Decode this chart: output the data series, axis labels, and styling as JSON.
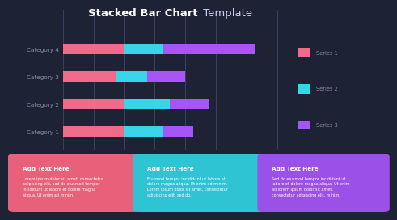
{
  "title_bold": "Stacked Bar Chart",
  "title_regular": " Template",
  "background_color": "#1e2235",
  "categories": [
    "Category 1",
    "Category 2",
    "Category 3",
    "Category 4"
  ],
  "series1_values": [
    4.0,
    4.0,
    3.5,
    4.0
  ],
  "series2_values": [
    2.5,
    3.0,
    2.0,
    2.5
  ],
  "series3_values": [
    2.0,
    2.5,
    2.5,
    6.0
  ],
  "colors": [
    "#f06b8a",
    "#38d4e8",
    "#a855f7"
  ],
  "legend_labels": [
    "Series 1",
    "Series 2",
    "Series 3"
  ],
  "xlim": [
    0,
    15
  ],
  "xticks": [
    0,
    2,
    4,
    6,
    8,
    10,
    12,
    14
  ],
  "tick_color": "#8890aa",
  "label_color": "#8890aa",
  "grid_color": "#2e3555",
  "vline_color": "#3a4060",
  "card_colors": [
    "#e8607a",
    "#2ec4d4",
    "#9b50e8"
  ],
  "card_title_color": "white",
  "card_text_color": "white",
  "card_titles": [
    "Add Text Here",
    "Add Text Here",
    "Add Text Here"
  ],
  "card_texts": [
    "Lorem ipsum dolor sit amet, consectetur\nadipiscing elit, sed do eiusmod tempor\nincididunt ut labore et dolore magna\naliqua. Ut enim ad minim.",
    "Eiusmod tempor incididunt ut labore et\ndolore magna aliqua. Ut enim ad minim.\nLorem ipsum dolor sit amet, consectetur\nadipiscing elit, sed do.",
    "Sed do eiusmod tempor incididunt ut\nlabore et dolore magna aliqua. Ut enim\nad lorem ipsum dolor sit amet,\nconsectetur adipiscing elit, minim."
  ]
}
